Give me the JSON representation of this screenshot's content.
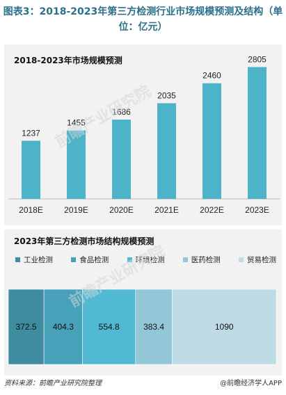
{
  "figure_title": "图表3：2018-2023年第三方检测行业市场规模预测及结构（单位：亿元）",
  "source": "资料来源：前瞻产业研究院整理",
  "brand": "@前瞻经济学人APP",
  "watermark": "前瞻产业研究院",
  "chart_data": [
    {
      "type": "bar",
      "title": "2018-2023年市场规模预测",
      "categories": [
        "2018E",
        "2019E",
        "2020E",
        "2021E",
        "2022E",
        "2023E"
      ],
      "values": [
        1237,
        1455,
        1686,
        2035,
        2460,
        2805
      ],
      "data_labels": [
        "1237",
        "1455",
        "1686",
        "2035",
        "2460",
        "2805"
      ],
      "color": "#4cb3c9",
      "ylim": [
        0,
        2900
      ],
      "grid": false
    },
    {
      "type": "bar",
      "stacked": true,
      "orientation": "horizontal",
      "title": "2023年第三方检测市场结构规模预测",
      "series": [
        {
          "name": "工业检测",
          "value": 372.5,
          "label": "372.5",
          "color": "#3f8ca1"
        },
        {
          "name": "食品检测",
          "value": 404.3,
          "label": "404.3",
          "color": "#46a1b9"
        },
        {
          "name": "环境检测",
          "value": 554.8,
          "label": "554.8",
          "color": "#52b9d3"
        },
        {
          "name": "医药检测",
          "value": 383.4,
          "label": "383.4",
          "color": "#93c6d7"
        },
        {
          "name": "贸易检测",
          "value": 1090,
          "label": "1090",
          "color": "#bfdbe6"
        }
      ],
      "legend_position": "top"
    }
  ]
}
